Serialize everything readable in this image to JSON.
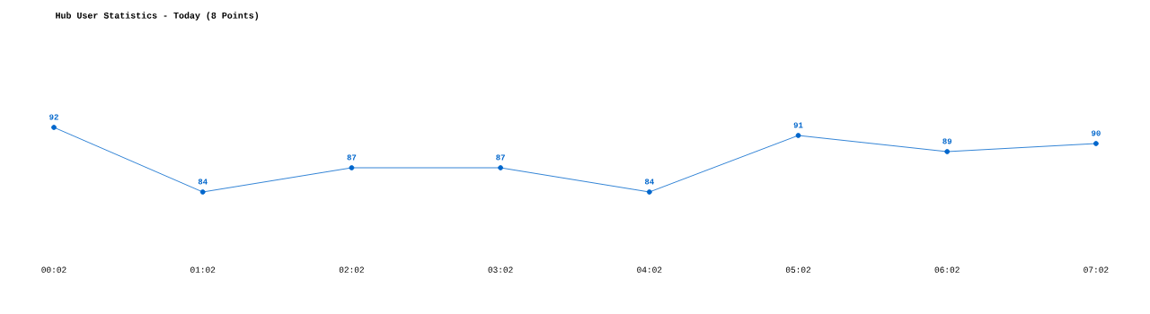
{
  "chart_data": {
    "type": "line",
    "title": "Hub User Statistics - Today (8 Points)",
    "categories": [
      "00:02",
      "01:02",
      "02:02",
      "03:02",
      "04:02",
      "05:02",
      "06:02",
      "07:02"
    ],
    "values": [
      92,
      84,
      87,
      87,
      84,
      91,
      89,
      90
    ],
    "color": "#0066cc",
    "marker": "circle",
    "line_style": "solid",
    "data_labels": true
  }
}
